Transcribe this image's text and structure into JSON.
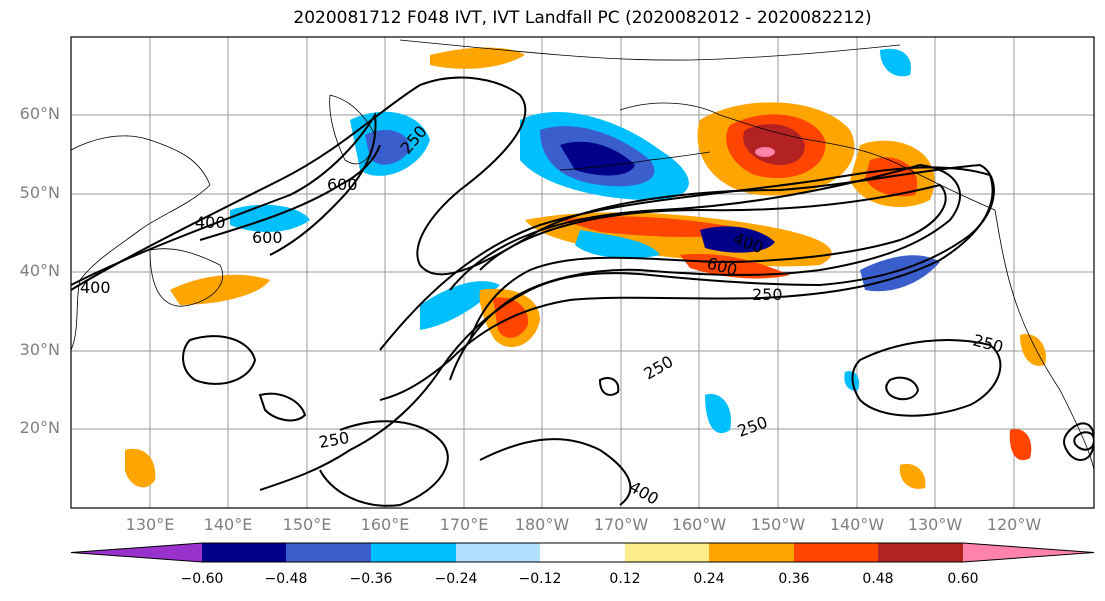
{
  "title": "2020081712 F048 IVT, IVT Landfall PC (2020082012 - 2020082212)",
  "lat_labels": [
    "60°N",
    "50°N",
    "40°N",
    "30°N",
    "20°N"
  ],
  "lon_labels": [
    "130°E",
    "140°E",
    "150°E",
    "160°E",
    "170°E",
    "180°W",
    "170°W",
    "160°W",
    "150°W",
    "140°W",
    "130°W",
    "120°W"
  ],
  "contour_labels": [
    "600",
    "400",
    "600",
    "250",
    "400",
    "600",
    "250",
    "250",
    "250",
    "250",
    "400",
    "250",
    "400"
  ],
  "colorbar": {
    "ticks": [
      "−0.60",
      "−0.48",
      "−0.36",
      "−0.24",
      "−0.12",
      "0.12",
      "0.24",
      "0.36",
      "0.48",
      "0.60"
    ],
    "colors": [
      "#9932cc",
      "#00008b",
      "#3a5fcd",
      "#00bfff",
      "#b0e2ff",
      "#ffffff",
      "#ffec8b",
      "#ffa500",
      "#ff4500",
      "#b22222",
      "#ff82ab"
    ]
  },
  "map": {
    "lat_range": [
      10,
      70
    ],
    "lon_range": [
      "120°E",
      "110°W"
    ],
    "grid": true,
    "positive_colors": [
      "#ffec8b",
      "#ffa500",
      "#ff4500",
      "#b22222",
      "#ff82ab"
    ],
    "negative_colors": [
      "#b0e2ff",
      "#00bfff",
      "#3a5fcd",
      "#00008b",
      "#9932cc"
    ]
  }
}
